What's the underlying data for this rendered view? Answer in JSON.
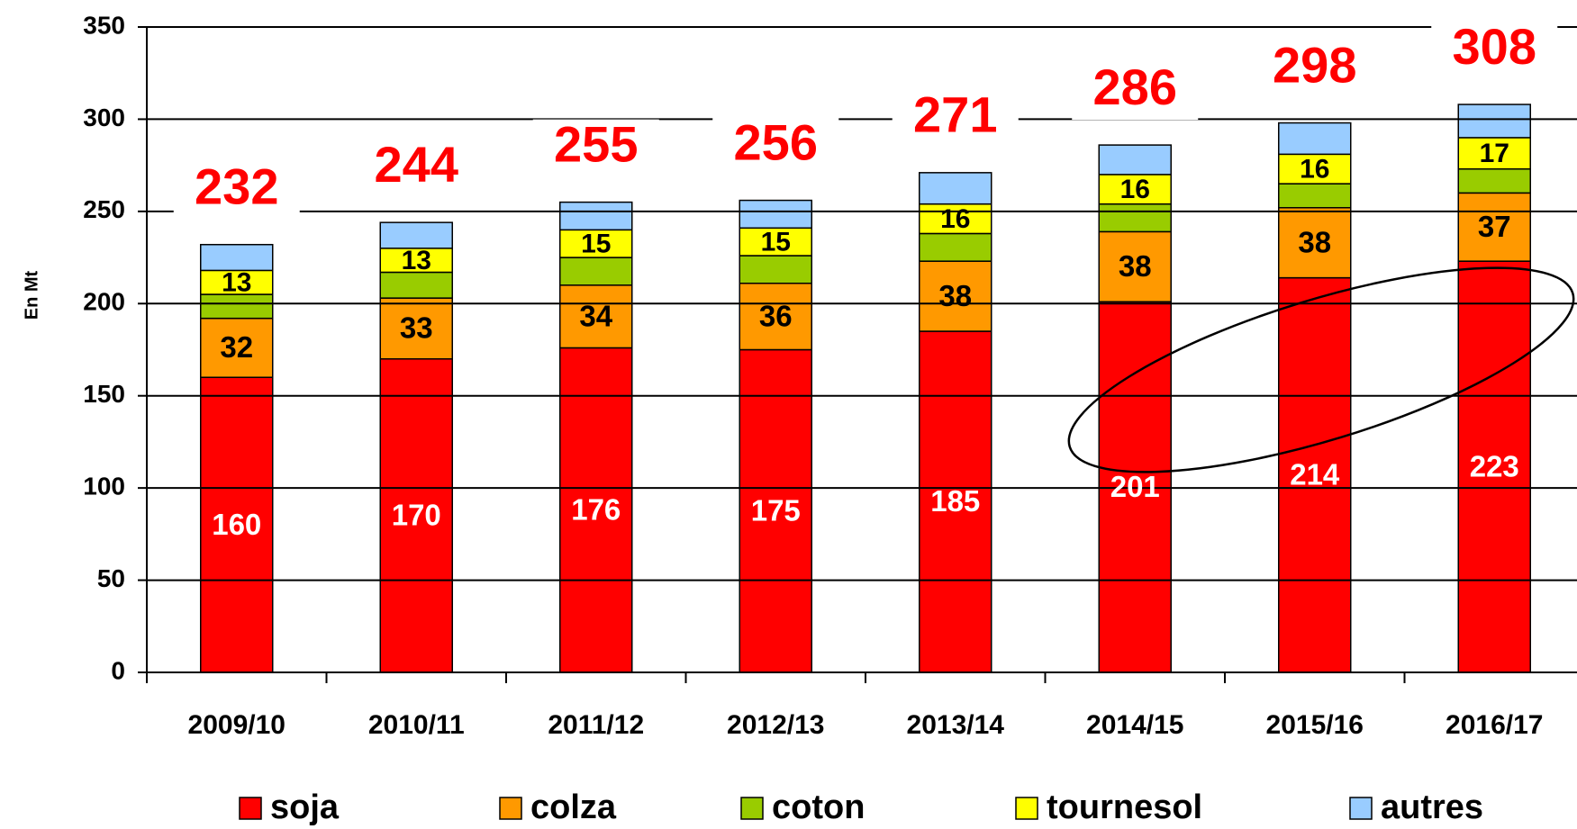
{
  "chart_data": {
    "type": "stacked_bar",
    "ylabel": "En Mt",
    "categories": [
      "2009/10",
      "2010/11",
      "2011/12",
      "2012/13",
      "2013/14",
      "2014/15",
      "2015/16",
      "2016/17"
    ],
    "series": [
      {
        "name": "soja",
        "color": "#ff0000",
        "label_color": "#ffffff",
        "show_labels": true,
        "values": [
          160,
          170,
          176,
          175,
          185,
          201,
          214,
          223
        ]
      },
      {
        "name": "colza",
        "color": "#ff9900",
        "label_color": "#000000",
        "show_labels": true,
        "values": [
          32,
          33,
          34,
          36,
          38,
          38,
          38,
          37
        ]
      },
      {
        "name": "coton",
        "color": "#99cc00",
        "label_color": "#000000",
        "show_labels": false,
        "values": [
          13,
          14,
          15,
          15,
          15,
          15,
          13,
          13
        ]
      },
      {
        "name": "tournesol",
        "color": "#ffff00",
        "label_color": "#000000",
        "show_labels": true,
        "values": [
          13,
          13,
          15,
          15,
          16,
          16,
          16,
          17
        ]
      },
      {
        "name": "autres",
        "color": "#99ccff",
        "label_color": "#000000",
        "show_labels": false,
        "values": [
          14,
          14,
          15,
          15,
          17,
          16,
          17,
          18
        ]
      }
    ],
    "totals": [
      232,
      244,
      255,
      256,
      271,
      286,
      298,
      308
    ],
    "totals_color": "#ff0000",
    "ylim": [
      0,
      350
    ],
    "yticks": [
      0,
      50,
      100,
      150,
      200,
      250,
      300,
      350
    ],
    "grid": true
  }
}
